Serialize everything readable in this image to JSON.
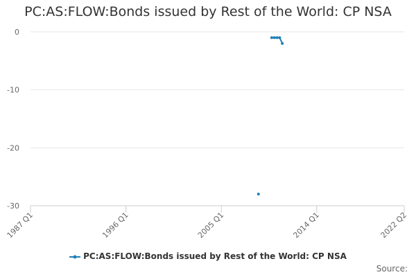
{
  "chart_data": {
    "type": "line",
    "title": "PC:AS:FLOW:Bonds issued by Rest of the World: CP NSA",
    "xlabel": "",
    "ylabel": "",
    "x_ticks": [
      "1987 Q1",
      "1996 Q1",
      "2005 Q1",
      "2014 Q1",
      "2022 Q2"
    ],
    "y_ticks": [
      0,
      -10,
      -20,
      -30
    ],
    "ylim": [
      -30,
      0
    ],
    "grid": true,
    "legend_position": "bottom",
    "series": [
      {
        "name": "PC:AS:FLOW:Bonds issued by Rest of the World: CP NSA",
        "color": "#1f7fb5",
        "points": [
          {
            "x": "2008 Q3",
            "y": -28
          },
          {
            "x": "2009 Q4",
            "y": -1
          },
          {
            "x": "2010 Q1",
            "y": -1
          },
          {
            "x": "2010 Q2",
            "y": -1
          },
          {
            "x": "2010 Q3",
            "y": -1
          },
          {
            "x": "2010 Q4",
            "y": -2
          }
        ]
      }
    ]
  },
  "source_label": "Source:"
}
